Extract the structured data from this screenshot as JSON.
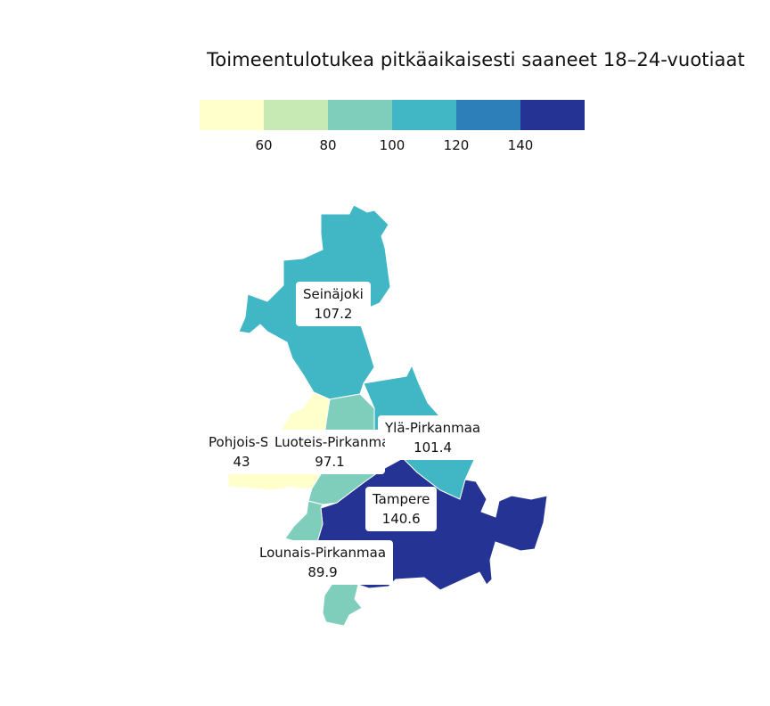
{
  "title": "Toimeentulotukea pitkäaikaisesti saaneet 18–24-vuotiaat",
  "legend": {
    "colors": [
      "#ffffcc",
      "#c7e9b4",
      "#7fcdbb",
      "#41b6c4",
      "#2c7fb8",
      "#253494"
    ],
    "ticks": [
      "60",
      "80",
      "100",
      "120",
      "140"
    ]
  },
  "regions": [
    {
      "name": "Seinäjoki",
      "value": "107.2",
      "color": "#41b6c4"
    },
    {
      "name": "Ylä-Pirkanmaa",
      "value": "101.4",
      "color": "#41b6c4"
    },
    {
      "name": "Pohjois-Satakunta",
      "value": "43",
      "color": "#ffffcc"
    },
    {
      "name": "Luoteis-Pirkanmaa",
      "value": "97.1",
      "color": "#7fcdbb"
    },
    {
      "name": "Tampere",
      "value": "140.6",
      "color": "#253494"
    },
    {
      "name": "Lounais-Pirkanmaa",
      "value": "89.9",
      "color": "#7fcdbb"
    }
  ]
}
